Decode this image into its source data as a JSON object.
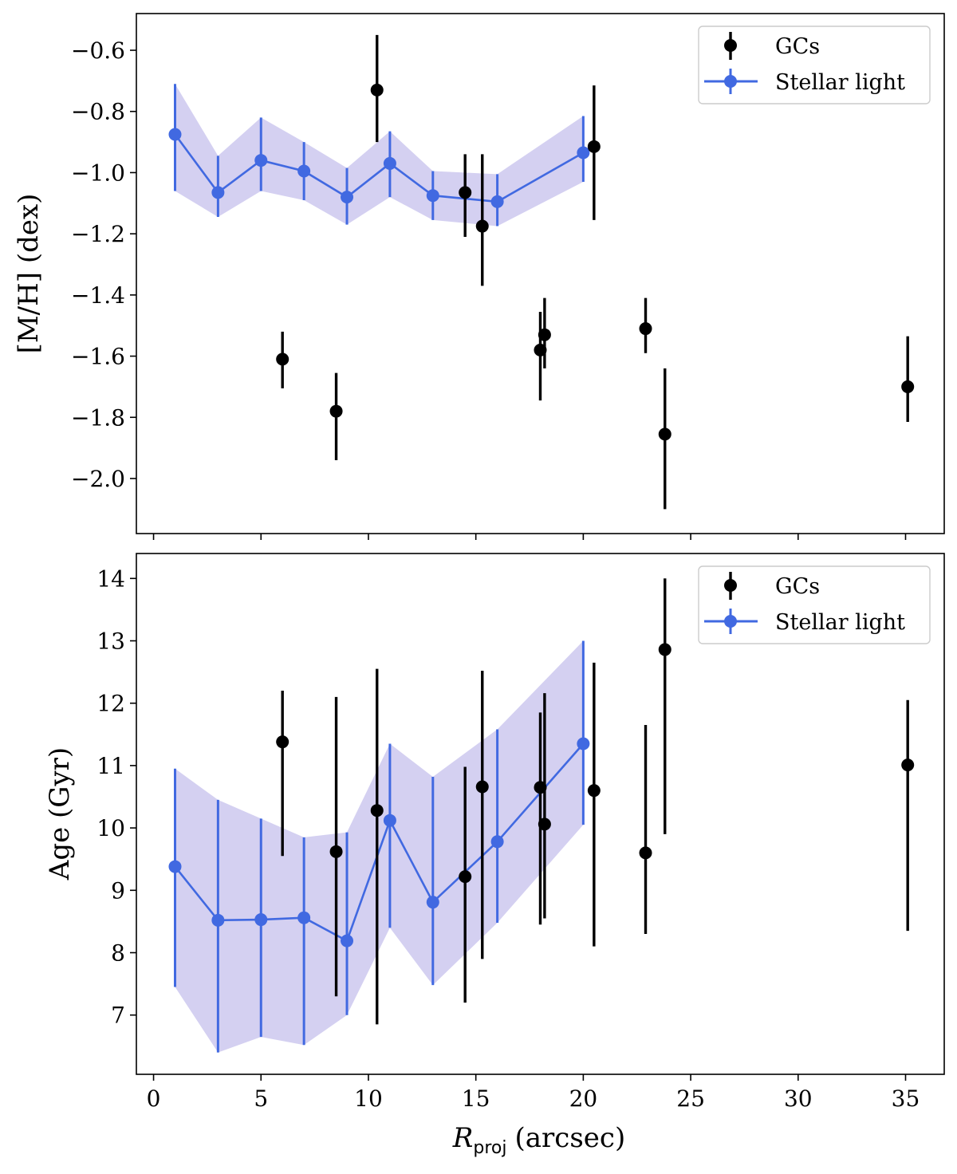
{
  "chart_data": [
    {
      "type": "scatter",
      "title": "",
      "xlabel": "R_proj (arcsec)",
      "xlabel_main": "R",
      "xlabel_sub": "proj",
      "xlabel_unit": "(arcsec)",
      "ylabel": "[M/H] (dex)",
      "xlim": [
        -0.8,
        36.8
      ],
      "ylim": [
        -2.18,
        -0.48
      ],
      "x_ticks": [
        0,
        5,
        10,
        15,
        20,
        25,
        30,
        35
      ],
      "y_ticks": [
        -0.6,
        -0.8,
        -1.0,
        -1.2,
        -1.4,
        -1.6,
        -1.8,
        -2.0
      ],
      "y_tick_labels": [
        "−0.6",
        "−0.8",
        "−1.0",
        "−1.2",
        "−1.4",
        "−1.6",
        "−1.8",
        "−2.0"
      ],
      "x_tick_labels_shown": false,
      "grid": false,
      "legend_position": "top-right",
      "series": [
        {
          "name": "GCs",
          "color": "#000000",
          "style": "errorbar-points",
          "points": [
            {
              "x": 6.0,
              "y": -1.61,
              "lo": -1.705,
              "hi": -1.52
            },
            {
              "x": 8.5,
              "y": -1.78,
              "lo": -1.94,
              "hi": -1.655
            },
            {
              "x": 10.4,
              "y": -0.73,
              "lo": -0.9,
              "hi": -0.55
            },
            {
              "x": 14.5,
              "y": -1.065,
              "lo": -1.21,
              "hi": -0.94
            },
            {
              "x": 15.3,
              "y": -1.175,
              "lo": -1.37,
              "hi": -0.94
            },
            {
              "x": 18.0,
              "y": -1.58,
              "lo": -1.745,
              "hi": -1.455
            },
            {
              "x": 18.2,
              "y": -1.53,
              "lo": -1.64,
              "hi": -1.41
            },
            {
              "x": 20.5,
              "y": -0.915,
              "lo": -1.155,
              "hi": -0.715
            },
            {
              "x": 22.9,
              "y": -1.51,
              "lo": -1.59,
              "hi": -1.41
            },
            {
              "x": 23.8,
              "y": -1.855,
              "lo": -2.1,
              "hi": -1.64
            },
            {
              "x": 35.1,
              "y": -1.7,
              "lo": -1.815,
              "hi": -1.535
            }
          ]
        },
        {
          "name": "Stellar light",
          "color": "#4169e1",
          "band_color": "#d4d0f1",
          "style": "line-errorbar-band",
          "points": [
            {
              "x": 1,
              "y": -0.875,
              "lo": -1.06,
              "hi": -0.71
            },
            {
              "x": 3,
              "y": -1.065,
              "lo": -1.145,
              "hi": -0.945
            },
            {
              "x": 5,
              "y": -0.96,
              "lo": -1.06,
              "hi": -0.82
            },
            {
              "x": 7,
              "y": -0.995,
              "lo": -1.09,
              "hi": -0.9
            },
            {
              "x": 9,
              "y": -1.08,
              "lo": -1.17,
              "hi": -0.985
            },
            {
              "x": 11,
              "y": -0.97,
              "lo": -1.08,
              "hi": -0.865
            },
            {
              "x": 13,
              "y": -1.075,
              "lo": -1.155,
              "hi": -0.995
            },
            {
              "x": 16,
              "y": -1.095,
              "lo": -1.175,
              "hi": -1.005
            },
            {
              "x": 20,
              "y": -0.935,
              "lo": -1.03,
              "hi": -0.815
            }
          ]
        }
      ]
    },
    {
      "type": "scatter",
      "title": "",
      "xlabel": "R_proj (arcsec)",
      "xlabel_main": "R",
      "xlabel_sub": "proj",
      "xlabel_unit": "(arcsec)",
      "ylabel": "Age (Gyr)",
      "xlim": [
        -0.8,
        36.8
      ],
      "ylim": [
        6.05,
        14.4
      ],
      "x_ticks": [
        0,
        5,
        10,
        15,
        20,
        25,
        30,
        35
      ],
      "x_tick_labels": [
        "0",
        "5",
        "10",
        "15",
        "20",
        "25",
        "30",
        "35"
      ],
      "y_ticks": [
        7,
        8,
        9,
        10,
        11,
        12,
        13,
        14
      ],
      "y_tick_labels": [
        "7",
        "8",
        "9",
        "10",
        "11",
        "12",
        "13",
        "14"
      ],
      "grid": false,
      "legend_position": "top-right",
      "series": [
        {
          "name": "GCs",
          "color": "#000000",
          "style": "errorbar-points",
          "points": [
            {
              "x": 6.0,
              "y": 11.38,
              "lo": 9.55,
              "hi": 12.2
            },
            {
              "x": 8.5,
              "y": 9.62,
              "lo": 7.3,
              "hi": 12.1
            },
            {
              "x": 10.4,
              "y": 10.28,
              "lo": 6.85,
              "hi": 12.55
            },
            {
              "x": 14.5,
              "y": 9.22,
              "lo": 7.2,
              "hi": 10.98
            },
            {
              "x": 15.3,
              "y": 10.66,
              "lo": 7.9,
              "hi": 12.52
            },
            {
              "x": 18.0,
              "y": 10.65,
              "lo": 8.45,
              "hi": 11.85
            },
            {
              "x": 18.2,
              "y": 10.06,
              "lo": 8.55,
              "hi": 12.16
            },
            {
              "x": 20.5,
              "y": 10.6,
              "lo": 8.1,
              "hi": 12.65
            },
            {
              "x": 22.9,
              "y": 9.6,
              "lo": 8.3,
              "hi": 11.65
            },
            {
              "x": 23.8,
              "y": 12.86,
              "lo": 9.9,
              "hi": 14.0
            },
            {
              "x": 35.1,
              "y": 11.01,
              "lo": 8.35,
              "hi": 12.05
            }
          ]
        },
        {
          "name": "Stellar light",
          "color": "#4169e1",
          "band_color": "#d4d0f1",
          "style": "line-errorbar-band",
          "points": [
            {
              "x": 1,
              "y": 9.38,
              "lo": 7.45,
              "hi": 10.95
            },
            {
              "x": 3,
              "y": 8.52,
              "lo": 6.4,
              "hi": 10.45
            },
            {
              "x": 5,
              "y": 8.53,
              "lo": 6.65,
              "hi": 10.15
            },
            {
              "x": 7,
              "y": 8.56,
              "lo": 6.52,
              "hi": 9.85
            },
            {
              "x": 9,
              "y": 8.19,
              "lo": 7.0,
              "hi": 9.93
            },
            {
              "x": 11,
              "y": 10.12,
              "lo": 8.4,
              "hi": 11.35
            },
            {
              "x": 13,
              "y": 8.81,
              "lo": 7.48,
              "hi": 10.82
            },
            {
              "x": 16,
              "y": 9.78,
              "lo": 8.48,
              "hi": 11.58
            },
            {
              "x": 20,
              "y": 11.35,
              "lo": 10.05,
              "hi": 13.0
            }
          ]
        }
      ]
    }
  ]
}
